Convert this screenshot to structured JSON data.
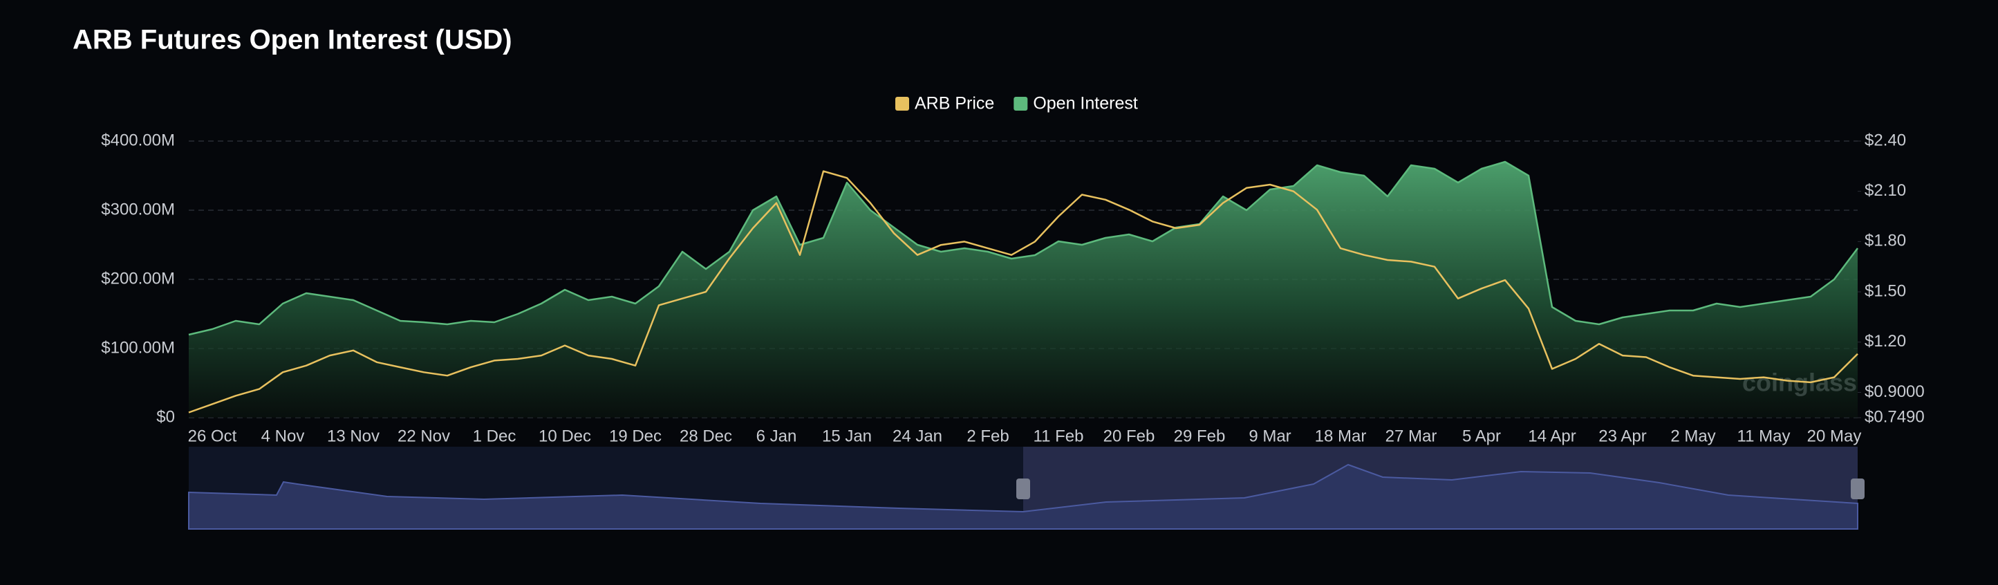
{
  "chart_data": {
    "type": "line",
    "title": "ARB Futures Open Interest (USD)",
    "watermark": "coinglass",
    "categories": [
      null,
      "26 Oct",
      null,
      null,
      "4 Nov",
      null,
      null,
      "13 Nov",
      null,
      null,
      "22 Nov",
      null,
      null,
      "1 Dec",
      null,
      null,
      "10 Dec",
      null,
      null,
      "19 Dec",
      null,
      null,
      "28 Dec",
      null,
      null,
      "6 Jan",
      null,
      null,
      "15 Jan",
      null,
      null,
      "24 Jan",
      null,
      null,
      "2 Feb",
      null,
      null,
      "11 Feb",
      null,
      null,
      "20 Feb",
      null,
      null,
      "29 Feb",
      null,
      null,
      "9 Mar",
      null,
      null,
      "18 Mar",
      null,
      null,
      "27 Mar",
      null,
      null,
      "5 Apr",
      null,
      null,
      "14 Apr",
      null,
      null,
      "23 Apr",
      null,
      null,
      "2 May",
      null,
      null,
      "11 May",
      null,
      null,
      "20 May",
      null
    ],
    "series": [
      {
        "name": "ARB Price",
        "color": "#e8c15f",
        "axis": "y2",
        "values": [
          0.78,
          0.83,
          0.88,
          0.92,
          1.02,
          1.06,
          1.12,
          1.15,
          1.08,
          1.05,
          1.02,
          1.0,
          1.05,
          1.09,
          1.1,
          1.12,
          1.18,
          1.12,
          1.1,
          1.06,
          1.42,
          1.46,
          1.5,
          1.7,
          1.88,
          2.03,
          1.72,
          2.22,
          2.18,
          2.03,
          1.85,
          1.72,
          1.78,
          1.8,
          1.76,
          1.72,
          1.8,
          1.95,
          2.08,
          2.05,
          1.99,
          1.92,
          1.88,
          1.9,
          2.03,
          2.12,
          2.14,
          2.1,
          1.99,
          1.76,
          1.72,
          1.69,
          1.68,
          1.65,
          1.46,
          1.52,
          1.57,
          1.4,
          1.04,
          1.1,
          1.19,
          1.12,
          1.11,
          1.05,
          1.0,
          0.99,
          0.98,
          0.99,
          0.97,
          0.96,
          0.99,
          1.13
        ]
      },
      {
        "name": "Open Interest",
        "color": "#5dba7d",
        "values": [
          120000000,
          128000000,
          140000000,
          135000000,
          165000000,
          180000000,
          175000000,
          170000000,
          155000000,
          140000000,
          138000000,
          135000000,
          140000000,
          138000000,
          150000000,
          165000000,
          185000000,
          170000000,
          175000000,
          165000000,
          190000000,
          240000000,
          215000000,
          240000000,
          300000000,
          320000000,
          250000000,
          260000000,
          340000000,
          300000000,
          275000000,
          250000000,
          240000000,
          245000000,
          240000000,
          230000000,
          235000000,
          255000000,
          250000000,
          260000000,
          265000000,
          255000000,
          275000000,
          280000000,
          320000000,
          300000000,
          330000000,
          335000000,
          365000000,
          355000000,
          350000000,
          320000000,
          365000000,
          360000000,
          340000000,
          360000000,
          370000000,
          350000000,
          160000000,
          140000000,
          135000000,
          145000000,
          150000000,
          155000000,
          155000000,
          165000000,
          160000000,
          165000000,
          170000000,
          175000000,
          200000000,
          245000000
        ]
      }
    ],
    "ylim": [
      0,
      400000000
    ],
    "yticks": [
      {
        "value": 0,
        "label": "$0"
      },
      {
        "value": 100000000,
        "label": "$100.00M"
      },
      {
        "value": 200000000,
        "label": "$200.00M"
      },
      {
        "value": 300000000,
        "label": "$300.00M"
      },
      {
        "value": 400000000,
        "label": "$400.00M"
      }
    ],
    "y2lim": [
      0.749,
      2.4
    ],
    "y2ticks": [
      {
        "value": 0.749,
        "label": "$0.7490"
      },
      {
        "value": 0.9,
        "label": "$0.9000"
      },
      {
        "value": 1.2,
        "label": "$1.20"
      },
      {
        "value": 1.5,
        "label": "$1.50"
      },
      {
        "value": 1.8,
        "label": "$1.80"
      },
      {
        "value": 2.1,
        "label": "$2.10"
      },
      {
        "value": 2.4,
        "label": "$2.40"
      }
    ],
    "grid": true,
    "legend": "top"
  }
}
